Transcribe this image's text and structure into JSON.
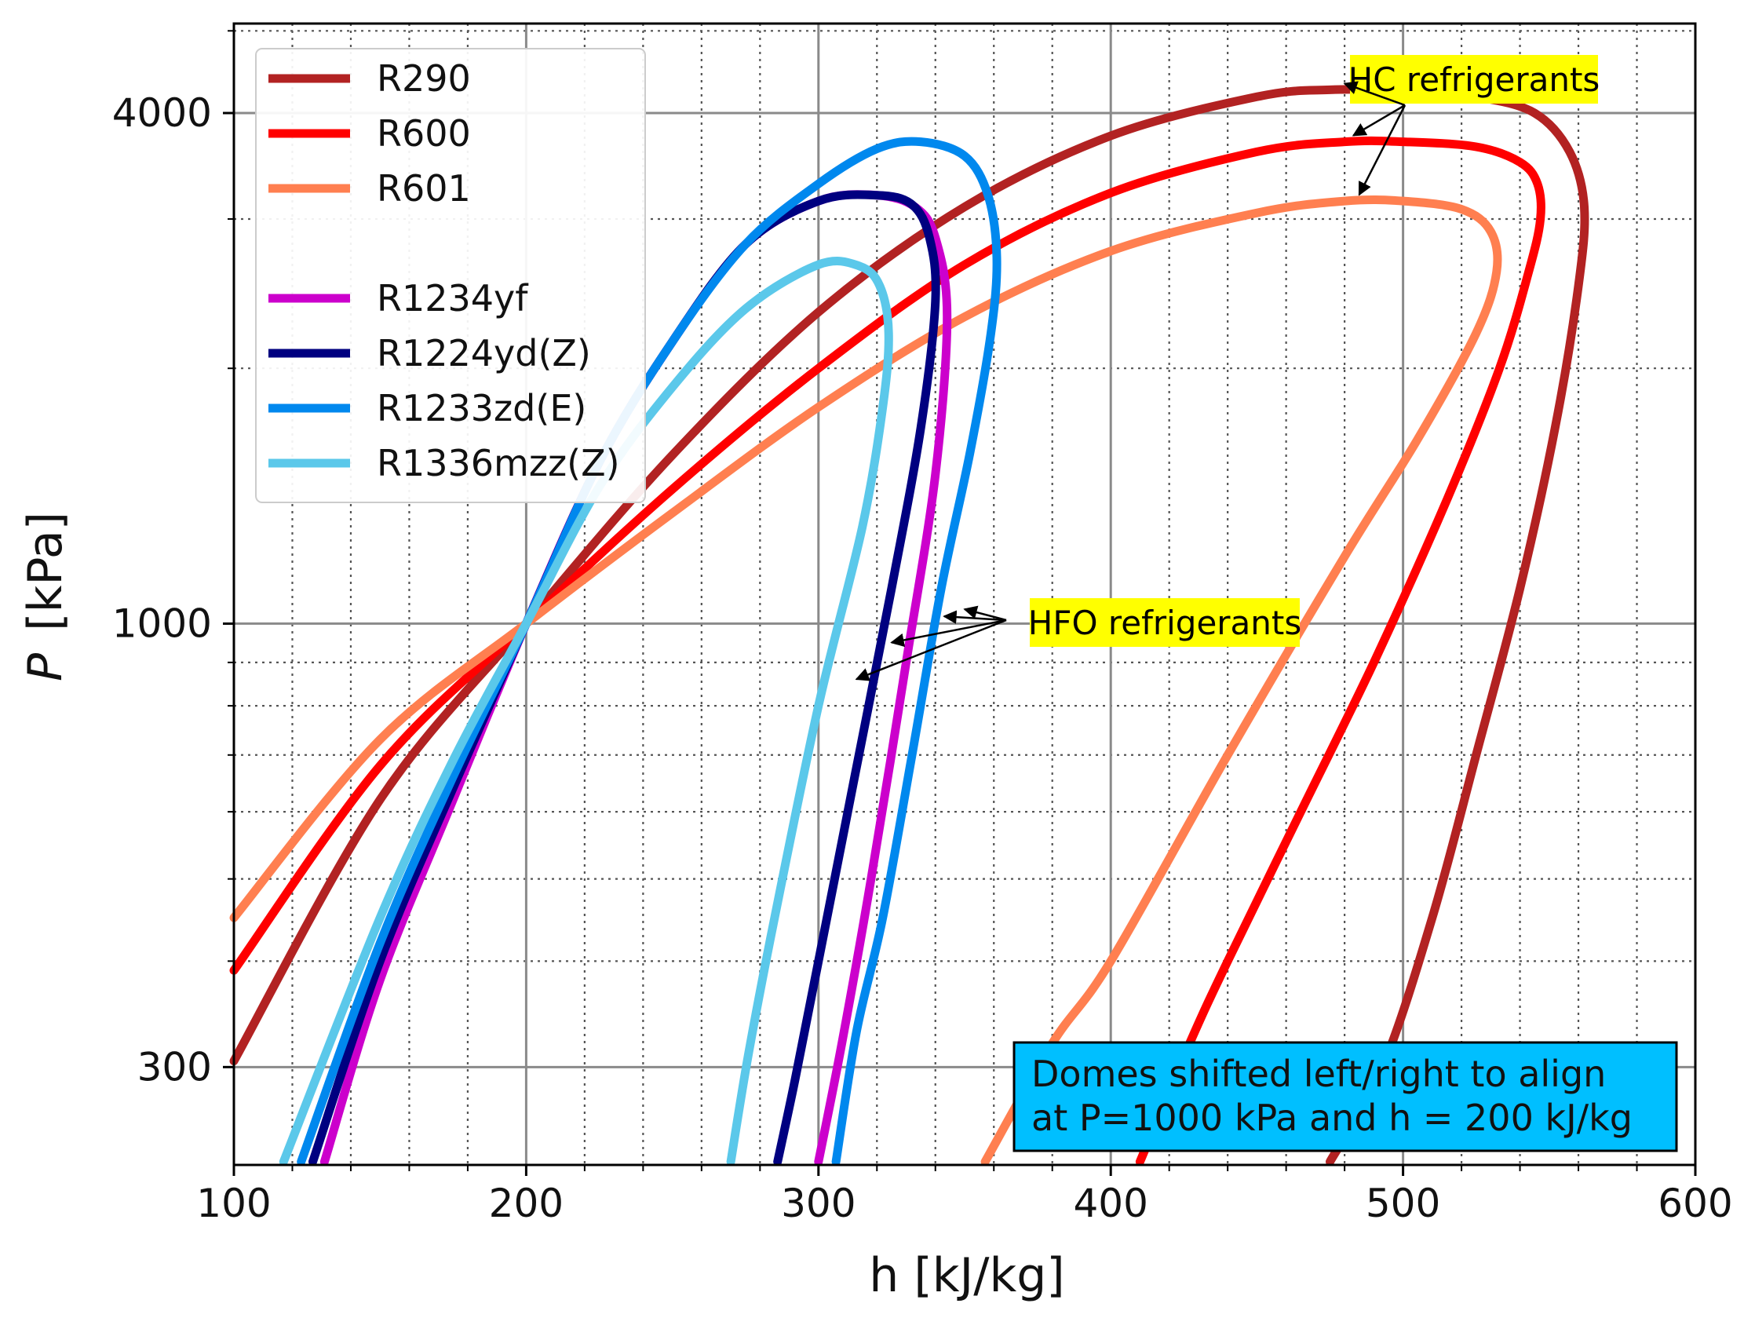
{
  "chart_data": {
    "type": "line",
    "title": "",
    "xlabel": "h  [kJ/kg]",
    "ylabel_italic": "P",
    "ylabel_unit": "[kPa]",
    "xlim": [
      100,
      600
    ],
    "ylim": [
      230,
      5100
    ],
    "yscale": "log",
    "grid": "major and minor",
    "xticks": [
      {
        "value": 100,
        "label": "100"
      },
      {
        "value": 200,
        "label": "200"
      },
      {
        "value": 300,
        "label": "300"
      },
      {
        "value": 400,
        "label": "400"
      },
      {
        "value": 500,
        "label": "500"
      },
      {
        "value": 600,
        "label": "600"
      }
    ],
    "yticks": [
      {
        "value": 300,
        "label": "300"
      },
      {
        "value": 1000,
        "label": "1000"
      },
      {
        "value": 4000,
        "label": "4000"
      }
    ],
    "legend_position": "top-left",
    "series": [
      {
        "name": "R290",
        "color": "#b22222",
        "group": "HC",
        "points": [
          [
            100,
            305
          ],
          [
            150,
            620
          ],
          [
            200,
            1000
          ],
          [
            250,
            1580
          ],
          [
            300,
            2330
          ],
          [
            350,
            3100
          ],
          [
            400,
            3760
          ],
          [
            450,
            4180
          ],
          [
            475,
            4260
          ],
          [
            500,
            4250
          ],
          [
            525,
            4180
          ],
          [
            545,
            4000
          ],
          [
            557,
            3600
          ],
          [
            562,
            3100
          ],
          [
            560,
            2500
          ],
          [
            552,
            1700
          ],
          [
            540,
            1100
          ],
          [
            525,
            700
          ],
          [
            510,
            450
          ],
          [
            493,
            300
          ],
          [
            475,
            232
          ]
        ]
      },
      {
        "name": "R600",
        "color": "#ff0000",
        "group": "HC",
        "points": [
          [
            100,
            390
          ],
          [
            150,
            680
          ],
          [
            200,
            1000
          ],
          [
            250,
            1440
          ],
          [
            300,
            2000
          ],
          [
            350,
            2650
          ],
          [
            400,
            3220
          ],
          [
            450,
            3600
          ],
          [
            480,
            3700
          ],
          [
            500,
            3700
          ],
          [
            525,
            3650
          ],
          [
            540,
            3500
          ],
          [
            546,
            3300
          ],
          [
            547,
            3000
          ],
          [
            543,
            2600
          ],
          [
            533,
            2000
          ],
          [
            515,
            1400
          ],
          [
            490,
            900
          ],
          [
            465,
            600
          ],
          [
            440,
            400
          ],
          [
            427,
            320
          ],
          [
            410,
            232
          ]
        ]
      },
      {
        "name": "R601",
        "color": "#ff7f50",
        "group": "HC",
        "points": [
          [
            100,
            450
          ],
          [
            150,
            730
          ],
          [
            200,
            1000
          ],
          [
            250,
            1350
          ],
          [
            300,
            1800
          ],
          [
            350,
            2300
          ],
          [
            400,
            2750
          ],
          [
            450,
            3050
          ],
          [
            480,
            3150
          ],
          [
            500,
            3150
          ],
          [
            520,
            3080
          ],
          [
            530,
            2900
          ],
          [
            532,
            2600
          ],
          [
            525,
            2200
          ],
          [
            505,
            1650
          ],
          [
            480,
            1200
          ],
          [
            440,
            700
          ],
          [
            400,
            400
          ],
          [
            380,
            320
          ],
          [
            357,
            232
          ]
        ]
      },
      {
        "name": "R1234yf",
        "color": "#cc00cc",
        "group": "HFO",
        "points": [
          [
            131,
            232
          ],
          [
            150,
            380
          ],
          [
            175,
            620
          ],
          [
            200,
            1000
          ],
          [
            225,
            1550
          ],
          [
            250,
            2150
          ],
          [
            275,
            2800
          ],
          [
            300,
            3150
          ],
          [
            320,
            3200
          ],
          [
            333,
            3100
          ],
          [
            340,
            2850
          ],
          [
            344,
            2300
          ],
          [
            340,
            1500
          ],
          [
            330,
            900
          ],
          [
            318,
            500
          ],
          [
            308,
            320
          ],
          [
            300,
            232
          ]
        ]
      },
      {
        "name": "R1224yd(Z)",
        "color": "#000080",
        "group": "HFO",
        "points": [
          [
            127,
            232
          ],
          [
            150,
            400
          ],
          [
            175,
            640
          ],
          [
            200,
            1000
          ],
          [
            225,
            1550
          ],
          [
            250,
            2150
          ],
          [
            275,
            2800
          ],
          [
            300,
            3150
          ],
          [
            320,
            3200
          ],
          [
            332,
            3120
          ],
          [
            338,
            2850
          ],
          [
            340,
            2400
          ],
          [
            335,
            1700
          ],
          [
            325,
            1100
          ],
          [
            312,
            650
          ],
          [
            300,
            400
          ],
          [
            292,
            290
          ],
          [
            286,
            232
          ]
        ]
      },
      {
        "name": "R1233zd(E)",
        "color": "#0088ee",
        "group": "HFO",
        "points": [
          [
            123,
            232
          ],
          [
            150,
            420
          ],
          [
            175,
            660
          ],
          [
            200,
            1000
          ],
          [
            225,
            1550
          ],
          [
            250,
            2150
          ],
          [
            275,
            2800
          ],
          [
            300,
            3300
          ],
          [
            320,
            3630
          ],
          [
            335,
            3700
          ],
          [
            350,
            3560
          ],
          [
            358,
            3200
          ],
          [
            361,
            2700
          ],
          [
            359,
            2200
          ],
          [
            352,
            1600
          ],
          [
            342,
            1100
          ],
          [
            332,
            700
          ],
          [
            322,
            450
          ],
          [
            313,
            330
          ],
          [
            306,
            232
          ]
        ]
      },
      {
        "name": "R1336mzz(Z)",
        "color": "#5bc8ea",
        "group": "HFO",
        "points": [
          [
            117,
            232
          ],
          [
            150,
            450
          ],
          [
            175,
            690
          ],
          [
            200,
            1000
          ],
          [
            225,
            1450
          ],
          [
            250,
            1900
          ],
          [
            275,
            2350
          ],
          [
            300,
            2650
          ],
          [
            314,
            2640
          ],
          [
            321,
            2500
          ],
          [
            324,
            2200
          ],
          [
            322,
            1800
          ],
          [
            315,
            1300
          ],
          [
            300,
            800
          ],
          [
            285,
            450
          ],
          [
            276,
            310
          ],
          [
            270,
            232
          ]
        ]
      }
    ],
    "annotations": [
      {
        "text": "HC refrigerants",
        "background": "#ffff00",
        "targets": "HC domes",
        "arrow_count": 3
      },
      {
        "text": "HFO refrigerants",
        "background": "#ffff00",
        "targets": "HFO domes",
        "arrow_count": 4
      }
    ],
    "note_box": {
      "lines": [
        "Domes shifted left/right to align",
        "at P=1000 kPa and h = 200 kJ/kg"
      ],
      "background": "#00bfff"
    }
  }
}
